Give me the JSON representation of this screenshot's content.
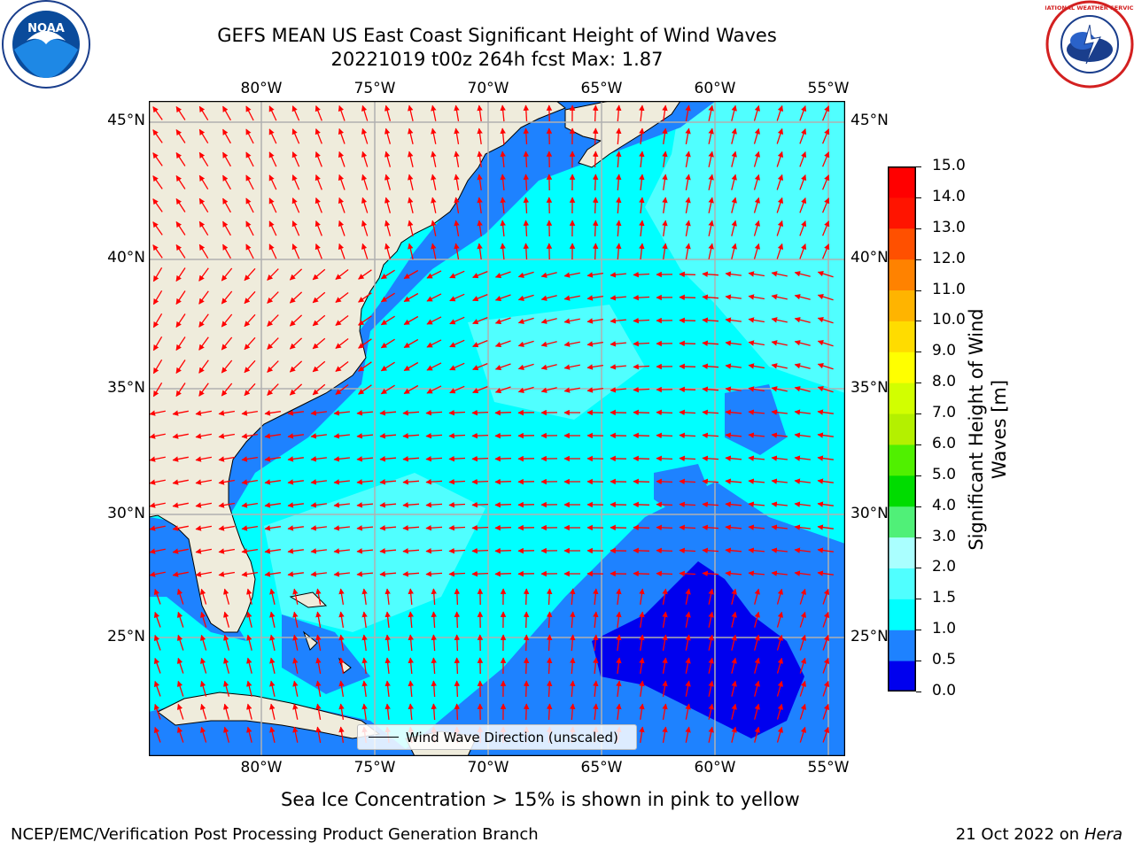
{
  "title": {
    "line1": "GEFS MEAN US East Coast Significant Height of Wind Waves",
    "line2": "20221019 t00z 264h fcst   Max: 1.87"
  },
  "logos": {
    "left": {
      "name": "NOAA",
      "text": "NOAA"
    },
    "right": {
      "name": "National Weather Service",
      "text": "NATIONAL WEATHER SERVICE"
    }
  },
  "map": {
    "lon_labels": [
      "80°W",
      "75°W",
      "70°W",
      "65°W",
      "60°W",
      "55°W"
    ],
    "lat_labels": [
      "45°N",
      "40°N",
      "35°N",
      "30°N",
      "25°N"
    ],
    "extent": {
      "lon_min": -85,
      "lon_max": -54.3,
      "lat_min": 20,
      "lat_max": 46
    },
    "land_color": "#efecdc",
    "grid_color": "#b0b0b0",
    "arrow_color": "#ff0000",
    "legend_label": "Wind Wave Direction (unscaled)"
  },
  "colorbar": {
    "label": "Significant Height of Wind Waves [m]",
    "ticks": [
      "0.0",
      "0.5",
      "1.0",
      "1.5",
      "2.0",
      "3.0",
      "4.0",
      "5.0",
      "6.0",
      "7.0",
      "8.0",
      "9.0",
      "10.0",
      "11.0",
      "12.0",
      "13.0",
      "14.0",
      "15.0"
    ],
    "colors": [
      "#0000ee",
      "#1e82ff",
      "#00ffff",
      "#50ffff",
      "#aaffff",
      "#50f078",
      "#00dc00",
      "#50f000",
      "#b4f000",
      "#d2ff00",
      "#ffff00",
      "#ffdc00",
      "#ffb400",
      "#ff8200",
      "#ff5000",
      "#ff1400",
      "#ff0000"
    ]
  },
  "note": "Sea Ice Concentration > 15% is shown in pink to yellow",
  "footer": {
    "left": "NCEP/EMC/Verification Post Processing Product Generation Branch",
    "right_prefix": "21 Oct 2022 on ",
    "right_machine": "Hera"
  }
}
